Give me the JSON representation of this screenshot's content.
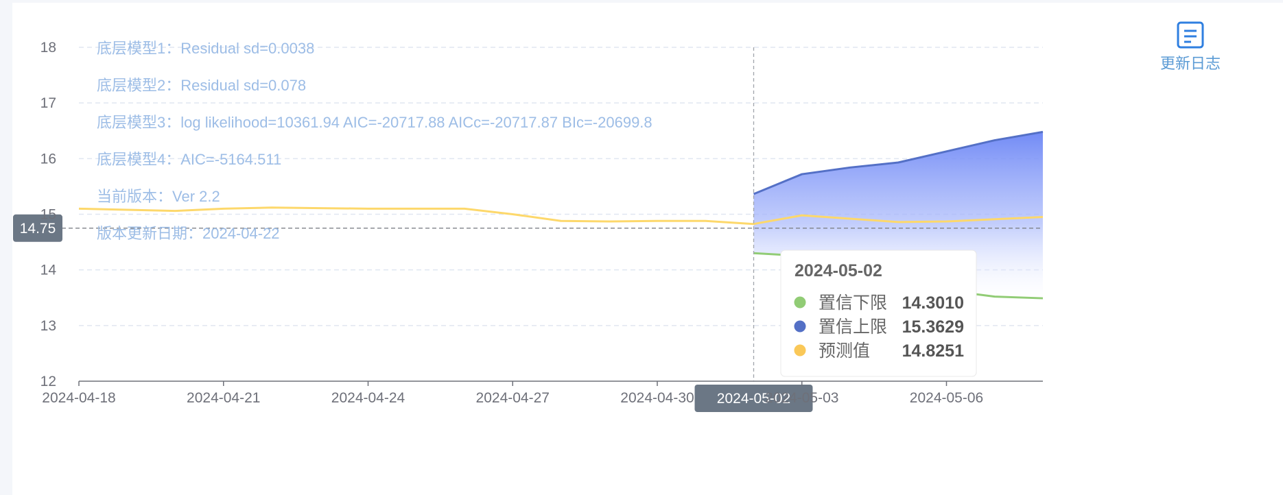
{
  "chart_data": {
    "type": "line",
    "x": [
      "2024-04-18",
      "2024-04-19",
      "2024-04-20",
      "2024-04-21",
      "2024-04-22",
      "2024-04-23",
      "2024-04-24",
      "2024-04-25",
      "2024-04-26",
      "2024-04-27",
      "2024-04-28",
      "2024-04-29",
      "2024-04-30",
      "2024-05-01",
      "2024-05-02",
      "2024-05-03",
      "2024-05-04",
      "2024-05-05",
      "2024-05-06",
      "2024-05-07",
      "2024-05-08"
    ],
    "x_tick_labels": [
      "2024-04-18",
      "2024-04-21",
      "2024-04-24",
      "2024-04-27",
      "2024-04-30",
      "2024-05-03",
      "2024-05-06"
    ],
    "ylim": [
      12,
      18
    ],
    "y_ticks": [
      12,
      13,
      14,
      15,
      16,
      17,
      18
    ],
    "grid": true,
    "series": [
      {
        "name": "预测值",
        "color": "#fdd86b",
        "values": [
          15.1,
          15.08,
          15.06,
          15.1,
          15.12,
          15.11,
          15.1,
          15.1,
          15.1,
          15.0,
          14.88,
          14.87,
          14.88,
          14.88,
          14.8251,
          14.98,
          14.92,
          14.86,
          14.87,
          14.91,
          14.95
        ]
      },
      {
        "name": "置信上限",
        "color": "#5470c6",
        "values": [
          null,
          null,
          null,
          null,
          null,
          null,
          null,
          null,
          null,
          null,
          null,
          null,
          null,
          null,
          15.3629,
          15.72,
          15.84,
          15.93,
          16.13,
          16.33,
          16.48
        ]
      },
      {
        "name": "置信下限",
        "color": "#91cc75",
        "values": [
          null,
          null,
          null,
          null,
          null,
          null,
          null,
          null,
          null,
          null,
          null,
          null,
          null,
          null,
          14.301,
          14.25,
          14.0,
          13.76,
          13.63,
          13.52,
          13.49
        ]
      }
    ],
    "axis_pointer": {
      "y_label": "14.75",
      "x_label": "2024-05-02"
    },
    "tooltip": {
      "title": "2024-05-02",
      "items": [
        {
          "name": "置信下限",
          "value": "14.3010",
          "color": "#91cc75"
        },
        {
          "name": "置信上限",
          "value": "15.3629",
          "color": "#5470c6"
        },
        {
          "name": "预测值",
          "value": "14.8251",
          "color": "#fac858"
        }
      ]
    },
    "annotations": [
      "底层模型1：Residual sd=0.0038",
      "底层模型2：Residual sd=0.078",
      "底层模型3：log likelihood=10361.94 AIC=-20717.88 AICc=-20717.87 BIc=-20699.8",
      "底层模型4：AIC=-5164.511",
      "当前版本：Ver 2.2",
      "版本更新日期：2024-04-22"
    ]
  },
  "changelog": {
    "label": "更新日志",
    "icon": "document-icon"
  }
}
